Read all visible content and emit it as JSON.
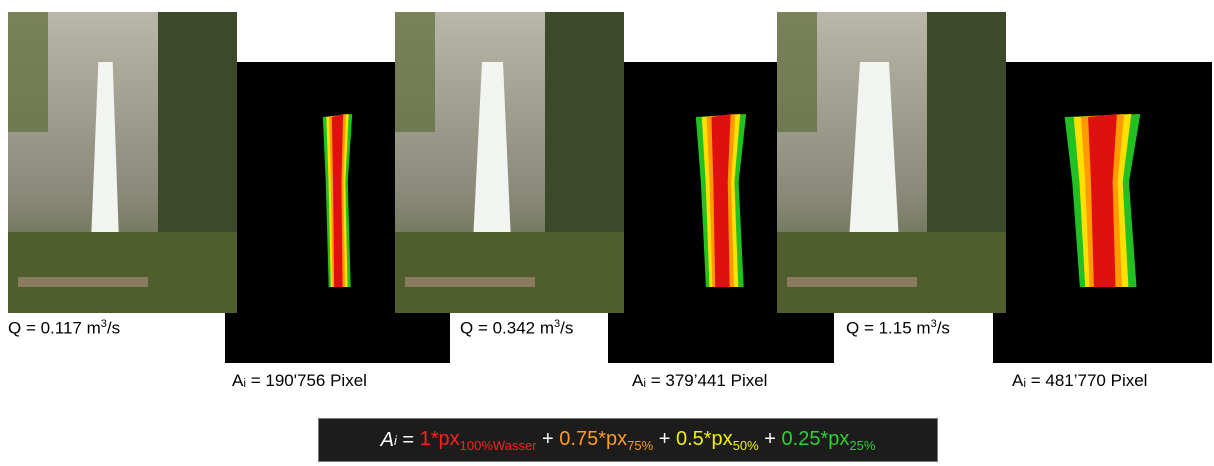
{
  "panels": [
    {
      "q_label": "Q = 0.117 m",
      "q_exp": "3",
      "q_unit": "/s",
      "area_label": "Aᵢ = 190'756 Pixel"
    },
    {
      "q_label": "Q = 0.342 m",
      "q_exp": "3",
      "q_unit": "/s",
      "area_label": "Aᵢ = 379’441 Pixel"
    },
    {
      "q_label": "Q = 1.15 m",
      "q_exp": "3",
      "q_unit": "/s",
      "area_label": "Aᵢ = 481’770 Pixel"
    }
  ],
  "formula": {
    "lhs": "A",
    "lhs_sub": "i",
    "eq": " = ",
    "terms": [
      {
        "coef": "1*px",
        "sub": "100%Wasser"
      },
      {
        "coef": "0.75*px",
        "sub": "75%"
      },
      {
        "coef": "0.5*px",
        "sub": "50%"
      },
      {
        "coef": "0.25*px",
        "sub": "25%"
      }
    ],
    "plus": " + "
  }
}
